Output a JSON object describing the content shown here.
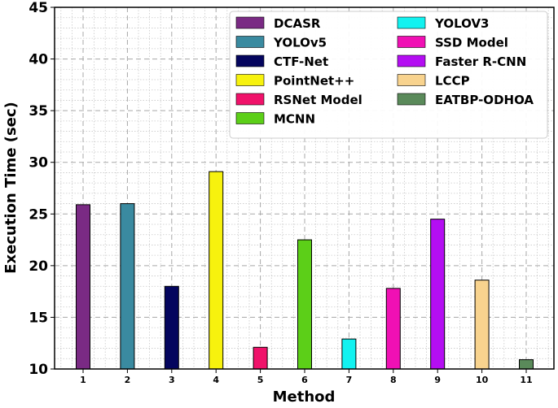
{
  "chart_data": {
    "type": "bar",
    "title": "",
    "xlabel": "Method",
    "ylabel": "Execution Time (sec)",
    "ylim": [
      10,
      45
    ],
    "yticks": [
      10,
      15,
      20,
      25,
      30,
      35,
      40,
      45
    ],
    "grid": true,
    "legend_position": "top-right",
    "categories": [
      "1",
      "2",
      "3",
      "4",
      "5",
      "6",
      "7",
      "8",
      "9",
      "10",
      "11"
    ],
    "series": [
      {
        "name": "DCASR",
        "value": 25.9,
        "color": "#7a2a84"
      },
      {
        "name": "YOLOv5",
        "value": 26.0,
        "color": "#3a8aa0"
      },
      {
        "name": "CTF-Net",
        "value": 18.0,
        "color": "#04055e"
      },
      {
        "name": "PointNet++",
        "value": 29.1,
        "color": "#f7f20e"
      },
      {
        "name": "RSNet Model",
        "value": 12.1,
        "color": "#f0126a"
      },
      {
        "name": "MCNN",
        "value": 22.5,
        "color": "#5ccf18"
      },
      {
        "name": "YOLOV3",
        "value": 12.9,
        "color": "#12f2f0"
      },
      {
        "name": "SSD Model",
        "value": 17.8,
        "color": "#f010b4"
      },
      {
        "name": "Faster R-CNN",
        "value": 24.5,
        "color": "#b40ef2"
      },
      {
        "name": "LCCP",
        "value": 18.6,
        "color": "#f8d38e"
      },
      {
        "name": "EATBP-ODHOA",
        "value": 10.9,
        "color": "#5a8a5a"
      }
    ]
  }
}
